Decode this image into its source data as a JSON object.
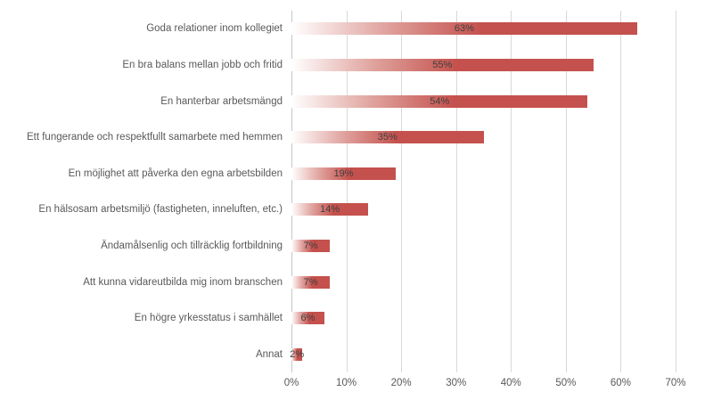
{
  "chart_data": {
    "type": "bar",
    "orientation": "horizontal",
    "title": "",
    "xlabel": "",
    "ylabel": "",
    "categories": [
      "Goda relationer inom kollegiet",
      "En bra balans mellan jobb och fritid",
      "En hanterbar arbetsmängd",
      "Ett fungerande och respektfullt samarbete med hemmen",
      "En möjlighet att påverka den egna arbetsbilden",
      "En hälsosam arbetsmiljö (fastigheten, inneluften, etc.)",
      "Ändamålsenlig och tillräcklig fortbildning",
      "Att kunna vidareutbilda mig inom branschen",
      "En högre yrkesstatus i samhället",
      "Annat"
    ],
    "values": [
      63,
      55,
      54,
      35,
      19,
      14,
      7,
      7,
      6,
      2
    ],
    "value_labels": [
      "63%",
      "55%",
      "54%",
      "35%",
      "19%",
      "14%",
      "7%",
      "7%",
      "6%",
      "2%"
    ],
    "x_ticks": [
      "0%",
      "10%",
      "20%",
      "30%",
      "40%",
      "50%",
      "60%",
      "70%"
    ],
    "x_tick_values": [
      0,
      10,
      20,
      30,
      40,
      50,
      60,
      70
    ],
    "xlim": [
      0,
      70
    ],
    "grid": "vertical",
    "legend": "none",
    "colors": {
      "bar_solid": "#c4514d",
      "bar_gradient_mid": "#dfa09b",
      "bar_gradient_start": "#ffffff",
      "value_label_text": "#3f3f3f",
      "category_text": "#595959",
      "axis_text": "#595959",
      "gridline": "#d9d9d9",
      "axis_line": "#c6c6c6",
      "background": "#ffffff"
    }
  }
}
